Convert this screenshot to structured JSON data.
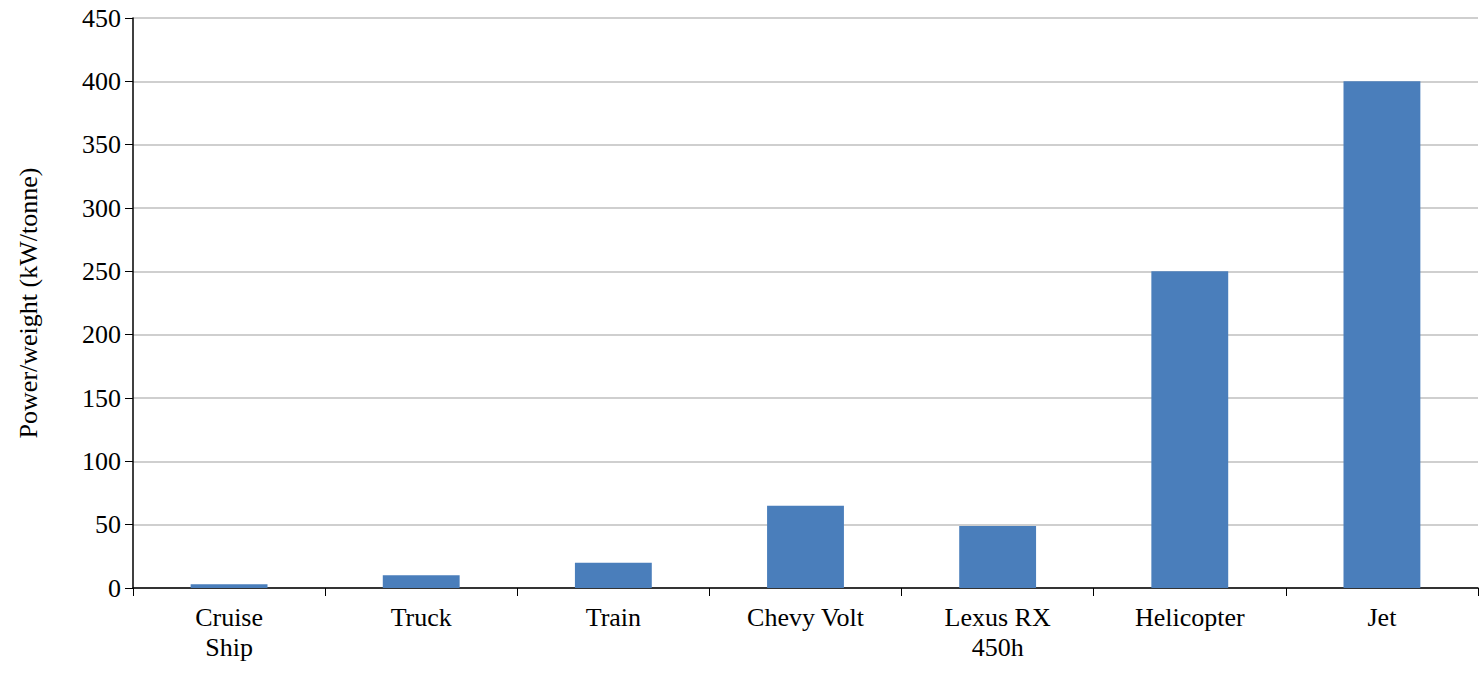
{
  "chart_data": {
    "type": "bar",
    "y_label": "Power/weight (kW/tonne)",
    "categories": [
      "Cruise Ship",
      "Truck",
      "Train",
      "Chevy Volt",
      "Lexus RX 450h",
      "Helicopter",
      "Jet"
    ],
    "values": [
      3,
      10,
      20,
      65,
      49,
      250,
      400
    ],
    "color": "#4a7ebb",
    "ylim": [
      0,
      450
    ],
    "yticks": [
      0,
      50,
      100,
      150,
      200,
      250,
      300,
      350,
      400,
      450
    ],
    "grid": true
  }
}
